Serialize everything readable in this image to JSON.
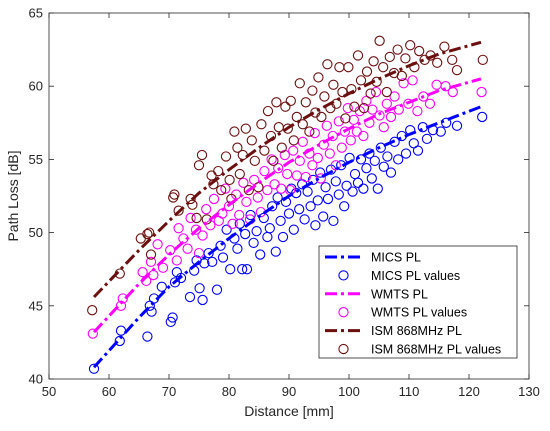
{
  "chart_data": {
    "type": "scatter",
    "xlabel": "Distance [mm]",
    "ylabel": "Path Loss [dB]",
    "xlim": [
      50,
      130
    ],
    "ylim": [
      40,
      65
    ],
    "xticks": [
      50,
      60,
      70,
      80,
      90,
      100,
      110,
      120,
      130
    ],
    "yticks": [
      40,
      45,
      50,
      55,
      60,
      65
    ],
    "grid": false,
    "legend_position": "bottom-right",
    "series": [
      {
        "name": "MICS PL",
        "kind": "fit-line",
        "color": "#0000FF",
        "x": [
          57.5,
          65,
          70,
          75,
          80,
          85,
          90,
          95,
          100,
          105,
          110,
          115,
          122
        ],
        "y": [
          40.8,
          44.2,
          46.3,
          48.0,
          49.6,
          51.1,
          52.5,
          53.7,
          54.8,
          55.8,
          56.7,
          57.5,
          58.6
        ]
      },
      {
        "name": "MICS PL values",
        "kind": "markers",
        "color": "#0000FF",
        "points": [
          [
            57.5,
            40.7
          ],
          [
            61.8,
            42.6
          ],
          [
            62.0,
            43.3
          ],
          [
            66.4,
            42.9
          ],
          [
            66.8,
            45.0
          ],
          [
            67.1,
            44.6
          ],
          [
            67.5,
            45.5
          ],
          [
            68.8,
            46.3
          ],
          [
            70.3,
            43.9
          ],
          [
            70.6,
            44.2
          ],
          [
            71.0,
            46.6
          ],
          [
            71.3,
            47.3
          ],
          [
            72.0,
            46.9
          ],
          [
            73.5,
            45.6
          ],
          [
            74.2,
            47.4
          ],
          [
            74.6,
            48.1
          ],
          [
            75.1,
            46.2
          ],
          [
            75.6,
            45.4
          ],
          [
            75.9,
            47.9
          ],
          [
            76.6,
            48.6
          ],
          [
            77.2,
            48.0
          ],
          [
            78.0,
            46.1
          ],
          [
            78.6,
            49.1
          ],
          [
            79.0,
            48.3
          ],
          [
            79.6,
            50.2
          ],
          [
            80.2,
            47.5
          ],
          [
            80.9,
            49.6
          ],
          [
            81.4,
            48.9
          ],
          [
            81.8,
            50.6
          ],
          [
            82.2,
            47.5
          ],
          [
            82.7,
            49.9
          ],
          [
            83.0,
            47.5
          ],
          [
            83.6,
            51.2
          ],
          [
            84.1,
            49.3
          ],
          [
            84.6,
            50.1
          ],
          [
            85.2,
            48.5
          ],
          [
            85.8,
            51.0
          ],
          [
            86.4,
            49.7
          ],
          [
            86.8,
            50.3
          ],
          [
            87.2,
            51.8
          ],
          [
            87.8,
            48.7
          ],
          [
            88.1,
            52.4
          ],
          [
            88.6,
            50.8
          ],
          [
            89.0,
            49.7
          ],
          [
            89.5,
            52.1
          ],
          [
            90.0,
            51.3
          ],
          [
            90.4,
            53.0
          ],
          [
            90.8,
            50.2
          ],
          [
            91.2,
            52.7
          ],
          [
            91.7,
            51.6
          ],
          [
            92.2,
            53.3
          ],
          [
            92.6,
            50.9
          ],
          [
            93.1,
            52.8
          ],
          [
            93.6,
            51.8
          ],
          [
            94.0,
            53.6
          ],
          [
            94.4,
            50.5
          ],
          [
            94.8,
            52.2
          ],
          [
            95.2,
            54.1
          ],
          [
            95.7,
            51.1
          ],
          [
            96.1,
            53.1
          ],
          [
            96.5,
            52.3
          ],
          [
            97.0,
            54.3
          ],
          [
            97.4,
            50.8
          ],
          [
            97.8,
            53.5
          ],
          [
            98.3,
            52.6
          ],
          [
            98.7,
            54.6
          ],
          [
            99.2,
            51.8
          ],
          [
            99.6,
            53.2
          ],
          [
            100.1,
            55.1
          ],
          [
            100.6,
            52.8
          ],
          [
            101.0,
            54.0
          ],
          [
            101.5,
            53.4
          ],
          [
            102.0,
            55.0
          ],
          [
            102.4,
            53.0
          ],
          [
            102.9,
            54.4
          ],
          [
            103.4,
            55.4
          ],
          [
            103.8,
            53.7
          ],
          [
            104.3,
            54.9
          ],
          [
            104.8,
            53.0
          ],
          [
            105.3,
            55.8
          ],
          [
            105.8,
            54.5
          ],
          [
            106.4,
            55.2
          ],
          [
            107.0,
            54.1
          ],
          [
            107.6,
            56.2
          ],
          [
            108.2,
            55.0
          ],
          [
            108.8,
            56.6
          ],
          [
            109.5,
            55.4
          ],
          [
            110.2,
            57.0
          ],
          [
            110.8,
            56.1
          ],
          [
            111.5,
            55.6
          ],
          [
            112.3,
            57.2
          ],
          [
            113.0,
            56.4
          ],
          [
            114.0,
            57.0
          ],
          [
            115.3,
            56.9
          ],
          [
            116.2,
            57.5
          ],
          [
            118.0,
            57.3
          ],
          [
            122.2,
            57.9
          ]
        ]
      },
      {
        "name": "WMTS PL",
        "kind": "fit-line",
        "color": "#FF00FF",
        "x": [
          57.5,
          65,
          70,
          75,
          80,
          85,
          90,
          95,
          100,
          105,
          110,
          115,
          122
        ],
        "y": [
          43.2,
          46.5,
          48.5,
          50.3,
          51.9,
          53.4,
          54.8,
          56.0,
          57.1,
          58.1,
          58.9,
          59.7,
          60.5
        ]
      },
      {
        "name": "WMTS PL values",
        "kind": "markers",
        "color": "#FF00FF",
        "points": [
          [
            57.3,
            43.1
          ],
          [
            62.0,
            45.0
          ],
          [
            62.3,
            45.5
          ],
          [
            65.6,
            47.3
          ],
          [
            66.2,
            46.7
          ],
          [
            67.0,
            48.0
          ],
          [
            67.4,
            47.1
          ],
          [
            68.1,
            49.2
          ],
          [
            69.0,
            47.6
          ],
          [
            70.2,
            48.8
          ],
          [
            71.3,
            48.1
          ],
          [
            71.6,
            50.3
          ],
          [
            72.4,
            49.6
          ],
          [
            73.1,
            48.9
          ],
          [
            73.6,
            51.0
          ],
          [
            74.5,
            50.2
          ],
          [
            75.0,
            48.6
          ],
          [
            75.6,
            49.8
          ],
          [
            76.2,
            51.6
          ],
          [
            76.9,
            50.5
          ],
          [
            77.5,
            52.3
          ],
          [
            78.3,
            50.8
          ],
          [
            78.9,
            51.3
          ],
          [
            79.4,
            53.0
          ],
          [
            80.0,
            51.8
          ],
          [
            80.6,
            50.6
          ],
          [
            81.2,
            52.6
          ],
          [
            81.7,
            51.2
          ],
          [
            82.4,
            53.4
          ],
          [
            82.9,
            52.1
          ],
          [
            83.5,
            50.9
          ],
          [
            84.2,
            53.6
          ],
          [
            84.8,
            52.4
          ],
          [
            85.3,
            51.4
          ],
          [
            85.9,
            54.2
          ],
          [
            86.4,
            52.9
          ],
          [
            87.1,
            55.0
          ],
          [
            87.6,
            53.3
          ],
          [
            88.2,
            54.4
          ],
          [
            88.7,
            53.0
          ],
          [
            89.3,
            55.3
          ],
          [
            89.7,
            54.0
          ],
          [
            90.2,
            52.9
          ],
          [
            90.7,
            55.6
          ],
          [
            91.3,
            53.9
          ],
          [
            91.8,
            54.9
          ],
          [
            92.3,
            56.2
          ],
          [
            92.8,
            53.8
          ],
          [
            93.4,
            55.4
          ],
          [
            93.9,
            54.6
          ],
          [
            94.3,
            56.8
          ],
          [
            94.8,
            55.1
          ],
          [
            95.3,
            53.7
          ],
          [
            95.8,
            56.0
          ],
          [
            96.3,
            57.3
          ],
          [
            96.8,
            55.4
          ],
          [
            97.3,
            56.6
          ],
          [
            97.8,
            54.6
          ],
          [
            98.3,
            57.6
          ],
          [
            98.8,
            55.8
          ],
          [
            99.3,
            56.9
          ],
          [
            99.8,
            58.5
          ],
          [
            100.3,
            56.3
          ],
          [
            100.8,
            57.7
          ],
          [
            101.3,
            56.9
          ],
          [
            101.8,
            58.3
          ],
          [
            102.4,
            56.6
          ],
          [
            102.9,
            59.0
          ],
          [
            103.4,
            57.5
          ],
          [
            103.9,
            58.4
          ],
          [
            104.5,
            59.6
          ],
          [
            105.1,
            58.0
          ],
          [
            105.8,
            57.2
          ],
          [
            106.3,
            58.8
          ],
          [
            107.0,
            57.9
          ],
          [
            107.6,
            59.3
          ],
          [
            108.3,
            58.4
          ],
          [
            109.1,
            60.2
          ],
          [
            109.9,
            58.8
          ],
          [
            110.6,
            60.4
          ],
          [
            111.4,
            58.3
          ],
          [
            112.4,
            59.3
          ],
          [
            113.5,
            58.8
          ],
          [
            114.6,
            60.1
          ],
          [
            116.1,
            60.0
          ],
          [
            117.3,
            59.6
          ],
          [
            122.1,
            59.6
          ]
        ]
      },
      {
        "name": "ISM 868MHz PL",
        "kind": "fit-line",
        "color": "#6B0F0F",
        "x": [
          57.5,
          65,
          70,
          75,
          80,
          85,
          90,
          95,
          100,
          105,
          110,
          115,
          122
        ],
        "y": [
          45.6,
          48.8,
          50.8,
          52.7,
          54.3,
          55.8,
          57.2,
          58.4,
          59.5,
          60.5,
          61.4,
          62.2,
          63.0
        ]
      },
      {
        "name": "ISM 868MHz PL values",
        "kind": "markers",
        "color": "#6B0F0F",
        "points": [
          [
            57.2,
            44.7
          ],
          [
            61.8,
            47.2
          ],
          [
            65.3,
            49.6
          ],
          [
            66.4,
            49.9
          ],
          [
            66.7,
            50.0
          ],
          [
            67.0,
            48.5
          ],
          [
            70.7,
            52.4
          ],
          [
            70.9,
            52.6
          ],
          [
            71.6,
            51.5
          ],
          [
            73.6,
            52.3
          ],
          [
            73.9,
            51.9
          ],
          [
            74.6,
            51.0
          ],
          [
            75.0,
            54.6
          ],
          [
            75.5,
            55.3
          ],
          [
            76.3,
            50.9
          ],
          [
            77.1,
            53.9
          ],
          [
            77.4,
            53.3
          ],
          [
            78.2,
            54.2
          ],
          [
            78.7,
            52.9
          ],
          [
            79.5,
            55.2
          ],
          [
            80.1,
            53.6
          ],
          [
            80.4,
            52.3
          ],
          [
            80.9,
            56.9
          ],
          [
            81.4,
            55.8
          ],
          [
            81.8,
            54.0
          ],
          [
            82.3,
            55.3
          ],
          [
            82.8,
            57.1
          ],
          [
            83.3,
            52.9
          ],
          [
            83.8,
            56.3
          ],
          [
            84.3,
            54.9
          ],
          [
            84.9,
            53.1
          ],
          [
            85.4,
            57.4
          ],
          [
            85.9,
            55.6
          ],
          [
            86.5,
            58.3
          ],
          [
            87.0,
            56.6
          ],
          [
            87.4,
            54.9
          ],
          [
            87.9,
            58.9
          ],
          [
            88.3,
            57.2
          ],
          [
            88.8,
            55.8
          ],
          [
            89.4,
            58.6
          ],
          [
            89.8,
            57.1
          ],
          [
            90.3,
            59.0
          ],
          [
            90.8,
            56.3
          ],
          [
            91.3,
            57.9
          ],
          [
            91.8,
            60.2
          ],
          [
            92.3,
            57.4
          ],
          [
            92.8,
            58.9
          ],
          [
            93.4,
            56.9
          ],
          [
            93.9,
            59.7
          ],
          [
            94.4,
            58.2
          ],
          [
            94.9,
            60.6
          ],
          [
            95.4,
            57.9
          ],
          [
            95.9,
            59.3
          ],
          [
            96.4,
            61.5
          ],
          [
            96.9,
            58.5
          ],
          [
            97.4,
            60.1
          ],
          [
            97.9,
            58.8
          ],
          [
            98.4,
            61.3
          ],
          [
            98.9,
            59.6
          ],
          [
            99.4,
            57.8
          ],
          [
            99.9,
            61.3
          ],
          [
            100.4,
            59.8
          ],
          [
            100.9,
            58.6
          ],
          [
            101.5,
            62.1
          ],
          [
            102.0,
            60.4
          ],
          [
            102.5,
            58.5
          ],
          [
            103.0,
            61.0
          ],
          [
            103.6,
            59.5
          ],
          [
            104.1,
            61.7
          ],
          [
            104.6,
            60.3
          ],
          [
            105.1,
            63.1
          ],
          [
            105.7,
            61.3
          ],
          [
            106.3,
            59.6
          ],
          [
            106.8,
            62.0
          ],
          [
            107.5,
            60.9
          ],
          [
            108.1,
            62.5
          ],
          [
            108.8,
            60.7
          ],
          [
            109.4,
            61.9
          ],
          [
            110.2,
            62.8
          ],
          [
            110.9,
            61.3
          ],
          [
            111.7,
            62.4
          ],
          [
            112.6,
            61.8
          ],
          [
            113.6,
            62.1
          ],
          [
            114.7,
            61.6
          ],
          [
            115.9,
            62.7
          ],
          [
            117.2,
            61.8
          ],
          [
            118.0,
            61.1
          ],
          [
            122.3,
            61.8
          ]
        ]
      }
    ]
  }
}
